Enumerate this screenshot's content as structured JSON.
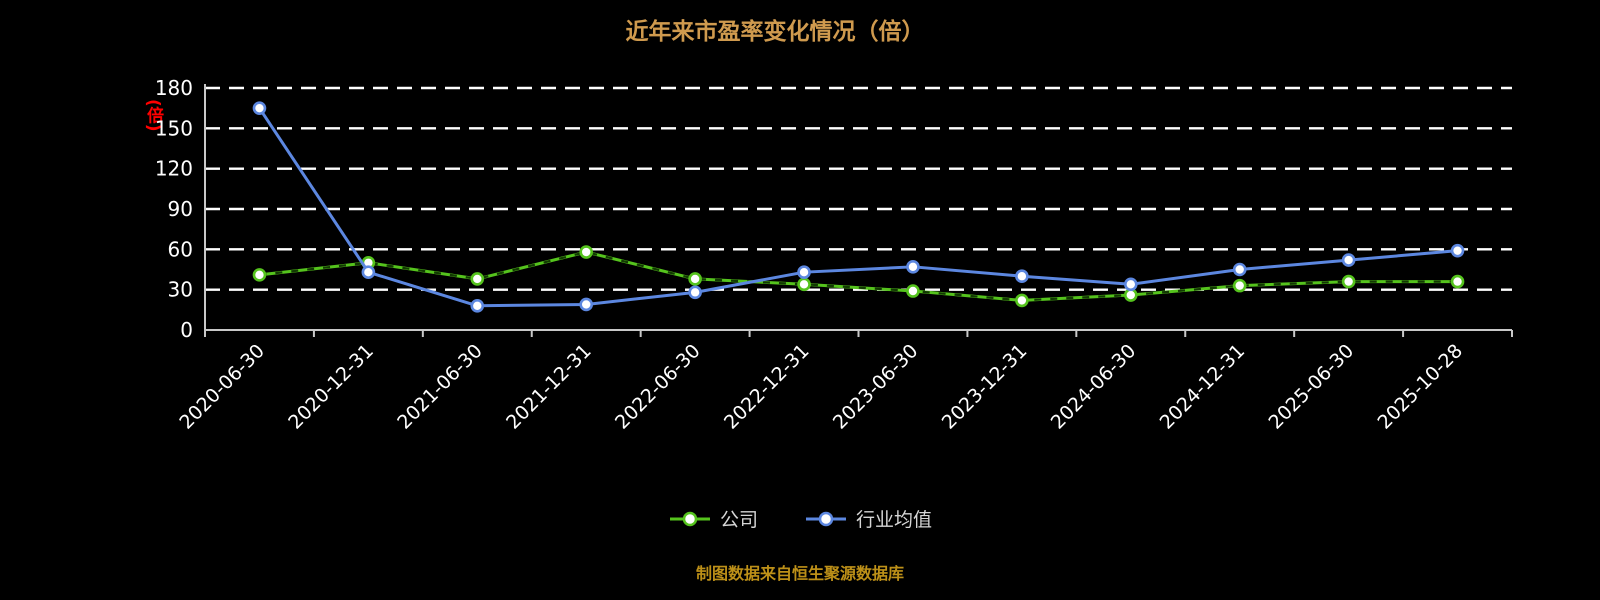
{
  "title": "近年来市盈率变化情况（倍）",
  "y_axis_unit": "(倍)",
  "caption": "制图数据来自恒生聚源数据库",
  "colors": {
    "background": "#000000",
    "title": "#cf9a4e",
    "caption": "#bd9018",
    "axis_text": "#ffffff",
    "grid_line": "#ffffff",
    "axis_line": "#c8c8c8",
    "unit_label": "#ff0000",
    "company_series": "#55c31d",
    "industry_series": "#5c87e0",
    "marker_fill": "#ffffff"
  },
  "chart_data": {
    "type": "line",
    "title": "近年来市盈率变化情况（倍）",
    "xlabel": "",
    "ylabel": "(倍)",
    "ylim": [
      0,
      180
    ],
    "yticks": [
      0,
      30,
      60,
      90,
      120,
      150,
      180
    ],
    "grid": "dashed-horizontal",
    "legend_position": "bottom",
    "categories": [
      "2020-06-30",
      "2020-12-31",
      "2021-06-30",
      "2021-12-31",
      "2022-06-30",
      "2022-12-31",
      "2023-06-30",
      "2023-12-31",
      "2024-06-30",
      "2024-12-31",
      "2025-06-30",
      "2025-10-28"
    ],
    "series": [
      {
        "name": "公司",
        "color": "#55c31d",
        "overlay_dash": true,
        "values": [
          41,
          50,
          38,
          58,
          38,
          34,
          29,
          22,
          26,
          33,
          36,
          36
        ]
      },
      {
        "name": "行业均值",
        "color": "#5c87e0",
        "overlay_dash": false,
        "values": [
          165,
          43,
          18,
          19,
          28,
          43,
          47,
          40,
          34,
          45,
          52,
          59
        ]
      }
    ]
  }
}
